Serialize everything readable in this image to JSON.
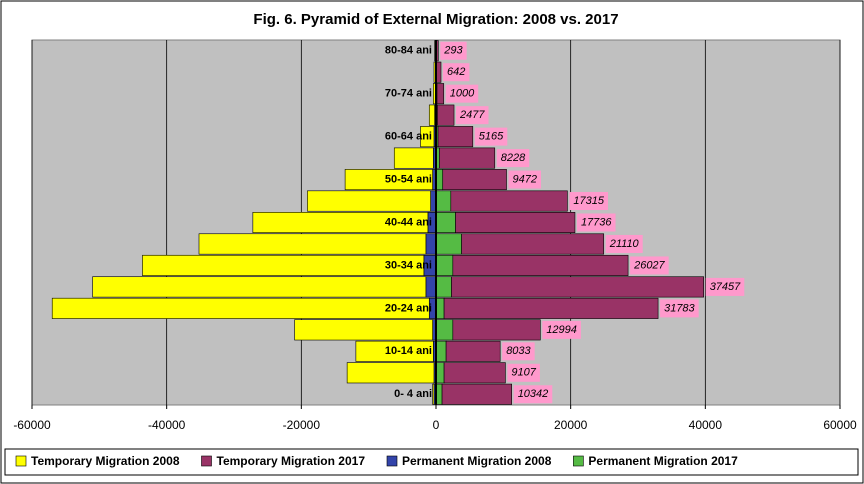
{
  "chart_data": {
    "type": "bar",
    "orientation": "horizontal",
    "stacked": true,
    "title": "Fig. 6. Pyramid of External Migration: 2008 vs. 2017",
    "categories": [
      "0- 4 ani",
      null,
      "10-14 ani",
      null,
      "20-24 ani",
      null,
      "30-34 ani",
      null,
      "40-44 ani",
      null,
      "50-54 ani",
      null,
      "60-64 ani",
      null,
      "70-74 ani",
      null,
      "80-84 ani"
    ],
    "series": [
      {
        "name": "Temporary Migration 2008",
        "color": "#ffff00",
        "values": [
          -200,
          -12900,
          -11500,
          -20500,
          -56000,
          -49500,
          -41800,
          -33700,
          -26000,
          -18300,
          -13000,
          -5800,
          -2000,
          -800,
          -300,
          -200,
          -100
        ]
      },
      {
        "name": "Temporary Migration 2017",
        "color": "#993366",
        "values": [
          10342,
          9107,
          8033,
          12994,
          31783,
          37457,
          26027,
          21110,
          17736,
          17315,
          9472,
          8228,
          5165,
          2477,
          1000,
          642,
          293
        ]
      },
      {
        "name": "Permanent Migration 2008",
        "color": "#3344aa",
        "values": [
          -300,
          -300,
          -400,
          -500,
          -1000,
          -1500,
          -1800,
          -1500,
          -1200,
          -800,
          -500,
          -400,
          -300,
          -200,
          -100,
          -100,
          -100
        ]
      },
      {
        "name": "Permanent Migration 2017",
        "color": "#55bb44",
        "values": [
          900,
          1200,
          1500,
          2500,
          1200,
          2300,
          2500,
          3800,
          2900,
          2200,
          1000,
          500,
          300,
          200,
          150,
          100,
          50
        ]
      }
    ],
    "data_label_series": 1,
    "data_label_color": "#ff99cc",
    "xlim": [
      -60000,
      60000
    ],
    "xticks": [
      -60000,
      -40000,
      -20000,
      0,
      20000,
      40000,
      60000
    ],
    "grid": true,
    "legend": "bottom"
  }
}
